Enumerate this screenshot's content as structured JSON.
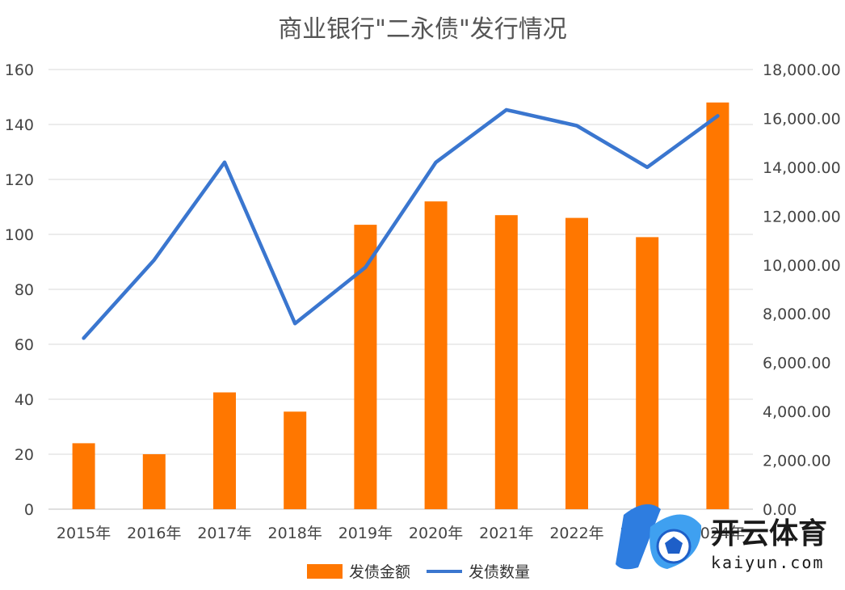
{
  "chart_data": {
    "type": "bar",
    "title": "商业银行\"二永债\"发行情况",
    "categories": [
      "2015年",
      "2016年",
      "2017年",
      "2018年",
      "2019年",
      "2020年",
      "2021年",
      "2022年",
      "2023年",
      "2024年"
    ],
    "series": [
      {
        "name": "发债金额",
        "type": "bar",
        "axis": "left",
        "color": "#FF7700",
        "values": [
          24,
          20,
          42.5,
          35.5,
          103.5,
          112,
          107,
          106,
          99,
          148
        ]
      },
      {
        "name": "发债数量",
        "type": "line",
        "axis": "right",
        "color": "#3A76CF",
        "values": [
          7000,
          10200,
          14200,
          7600,
          9900,
          14200,
          16350,
          15700,
          14000,
          16100
        ]
      }
    ],
    "left_axis": {
      "ylim": [
        0,
        160
      ],
      "ticks": [
        "0",
        "20",
        "40",
        "60",
        "80",
        "100",
        "120",
        "140",
        "160"
      ]
    },
    "right_axis": {
      "ylim": [
        0,
        18000
      ],
      "ticks": [
        "0.00",
        "2,000.00",
        "4,000.00",
        "6,000.00",
        "8,000.00",
        "10,000.00",
        "12,000.00",
        "14,000.00",
        "16,000.00",
        "18,000.00"
      ]
    },
    "grid": true,
    "legend": "bottom"
  },
  "watermark": {
    "title": "开云体育",
    "subtitle": "kaiyun.com"
  }
}
